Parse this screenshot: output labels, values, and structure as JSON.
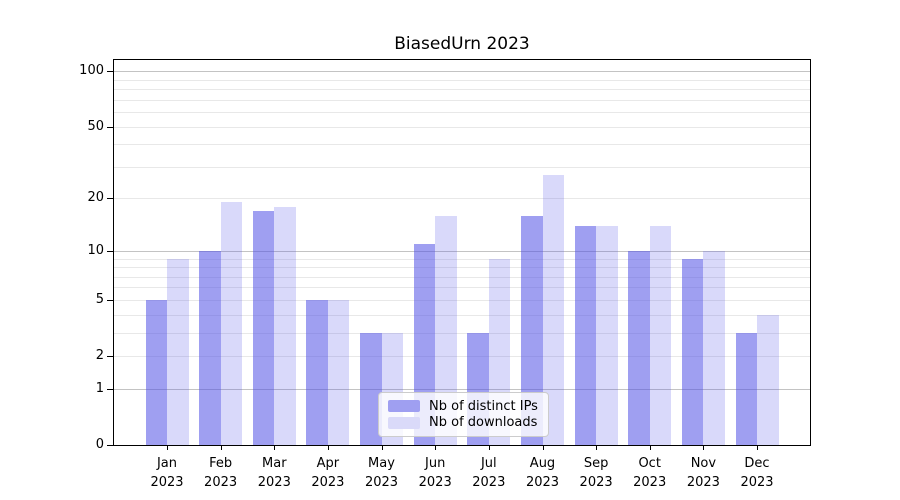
{
  "chart_data": {
    "type": "bar",
    "title": "BiasedUrn 2023",
    "categories": [
      "Jan 2023",
      "Feb 2023",
      "Mar 2023",
      "Apr 2023",
      "May 2023",
      "Jun 2023",
      "Jul 2023",
      "Aug 2023",
      "Sep 2023",
      "Oct 2023",
      "Nov 2023",
      "Dec 2023"
    ],
    "series": [
      {
        "name": "Nb of distinct IPs",
        "swatch": "#9f9ff1",
        "fill": "rgba(80,80,230,0.55)",
        "values": [
          5,
          10,
          17,
          5,
          3,
          11,
          3,
          16,
          14,
          10,
          9,
          3
        ]
      },
      {
        "name": "Nb of downloads",
        "swatch": "#dadaf9",
        "fill": "rgba(80,80,230,0.22)",
        "values": [
          9,
          19,
          18,
          5,
          3,
          16,
          9,
          27,
          14,
          14,
          10,
          4
        ]
      }
    ],
    "xlabel": "",
    "ylabel": "",
    "yscale": "log1p",
    "ylim": [
      0,
      115
    ],
    "y_ticks": [
      0,
      1,
      2,
      5,
      10,
      20,
      50,
      100
    ],
    "y_major_gridlines": [
      1,
      10,
      100
    ],
    "y_minor_gridlines": [
      2,
      3,
      4,
      5,
      6,
      7,
      8,
      9,
      20,
      30,
      40,
      50,
      60,
      70,
      80,
      90
    ],
    "grid": true,
    "legend_position": "lower center"
  },
  "colors": {
    "bar_ips": "#9f9ff1",
    "bar_downloads": "#dadaf9",
    "grid_major": "#c3c3c3",
    "grid_minor": "#e8e8e8",
    "axis": "#000000",
    "legend_border": "#cccccc",
    "background": "#ffffff"
  }
}
